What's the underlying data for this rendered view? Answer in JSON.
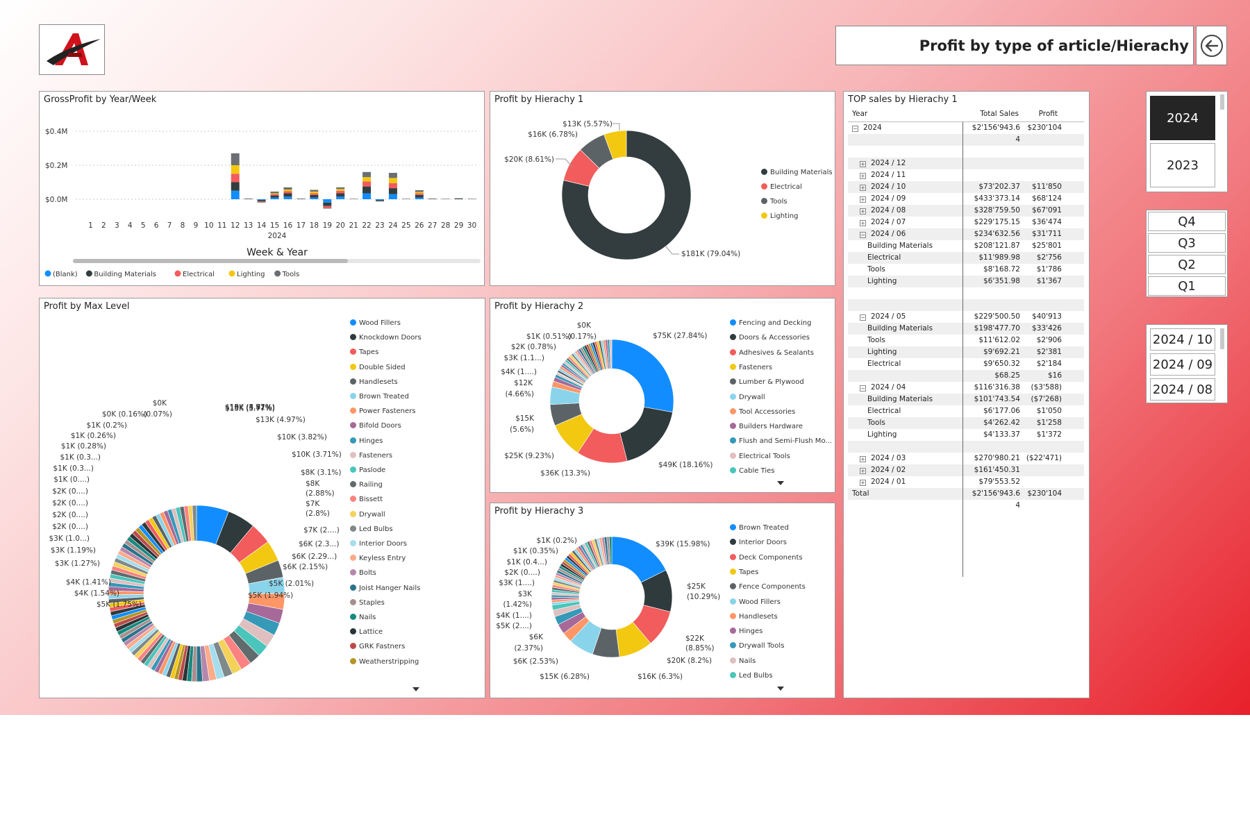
{
  "header": {
    "title": "Profit by type of article/Hierachy"
  },
  "icons": {
    "logo": "brand-logo",
    "back": "back-arrow-icon"
  },
  "gross_profit": {
    "title": "GrossProfit by Year/Week",
    "x_title": "Week & Year",
    "year_label": "2024",
    "y_ticks": [
      "$0.4M",
      "$0.2M",
      "$0.0M"
    ],
    "legend": [
      {
        "label": "(Blank)",
        "color": "#118dff"
      },
      {
        "label": "Building Materials",
        "color": "#333d3f"
      },
      {
        "label": "Electrical",
        "color": "#f25c5c"
      },
      {
        "label": "Lighting",
        "color": "#f2c811"
      },
      {
        "label": "Tools",
        "color": "#6b6f73"
      }
    ]
  },
  "hier1": {
    "title": "Profit by Hierachy 1",
    "legend": [
      {
        "label": "Building Materials",
        "color": "#333d3f"
      },
      {
        "label": "Electrical",
        "color": "#f25c5c"
      },
      {
        "label": "Tools",
        "color": "#5c6367"
      },
      {
        "label": "Lighting",
        "color": "#f2c811"
      }
    ],
    "labels": [
      "$13K (5.57%)",
      "$16K (6.78%)",
      "$20K (8.61%)",
      "$181K (79.04%)"
    ]
  },
  "maxlevel": {
    "title": "Profit by Max Level",
    "legend": [
      {
        "label": "Wood Fillers",
        "color": "#118dff"
      },
      {
        "label": "Knockdown Doors",
        "color": "#2f3a3d"
      },
      {
        "label": "Tapes",
        "color": "#f25c5c"
      },
      {
        "label": "Double Sided",
        "color": "#f2c811"
      },
      {
        "label": "Handlesets",
        "color": "#5c6367"
      },
      {
        "label": "Brown Treated",
        "color": "#8ad4eb"
      },
      {
        "label": "Power Fasteners",
        "color": "#fe9666"
      },
      {
        "label": "Bifold Doors",
        "color": "#a66999"
      },
      {
        "label": "Hinges",
        "color": "#3599b8"
      },
      {
        "label": "Fasteners",
        "color": "#dfbfbf"
      },
      {
        "label": "Paslode",
        "color": "#4ac5bb"
      },
      {
        "label": "Railing",
        "color": "#5f6b6d"
      },
      {
        "label": "Bissett",
        "color": "#fb8281"
      },
      {
        "label": "Drywall",
        "color": "#f4d25a"
      },
      {
        "label": "Led Bulbs",
        "color": "#7f898a"
      },
      {
        "label": "Interior Doors",
        "color": "#a4ddee"
      },
      {
        "label": "Keyless Entry",
        "color": "#fdab89"
      },
      {
        "label": "Bolts",
        "color": "#b687ac"
      },
      {
        "label": "Joist Hanger Nails",
        "color": "#28738a"
      },
      {
        "label": "Staples",
        "color": "#a78f8f"
      },
      {
        "label": "Nails",
        "color": "#168980"
      },
      {
        "label": "Lattice",
        "color": "#293537"
      },
      {
        "label": "GRK Fastners",
        "color": "#bb4a4a"
      },
      {
        "label": "Weatherstripping",
        "color": "#b59525"
      }
    ],
    "labels_right": [
      "$15K (5.77%)",
      "$13K (4.97%)",
      "$10K (3.82%)",
      "$10K (3.71%)",
      "$8K (3.1%)",
      "$8K",
      "(2.88%)",
      "$7K",
      "(2.8%)",
      "$7K (2....)",
      "$6K (2.3...)",
      "$6K (2.29...)",
      "$6K (2.15%)",
      "$5K (2.01%)",
      "$5K (1.94%)"
    ],
    "labels_left": [
      "$0K",
      "$0K (0.16%)",
      "(0.07%)",
      "$1K (0.2%)",
      "$1K (0.26%)",
      "$1K (0.28%)",
      "$1K (0.3...)",
      "$1K (0.3...)",
      "$1K (0....)",
      "$2K (0....)",
      "$2K (0....)",
      "$2K (0....)",
      "$2K (0....)",
      "$3K (1.0...)",
      "$3K (1.19%)",
      "$3K (1.27%)",
      "$4K (1.41%)",
      "$4K (1.54%)",
      "$5K (1.75%)"
    ]
  },
  "hier2": {
    "title": "Profit by Hierachy 2",
    "legend": [
      {
        "label": "Fencing and Decking",
        "color": "#118dff"
      },
      {
        "label": "Doors & Accessories",
        "color": "#2f3a3d"
      },
      {
        "label": "Adhesives & Sealants",
        "color": "#f25c5c"
      },
      {
        "label": "Fasteners",
        "color": "#f2c811"
      },
      {
        "label": "Lumber & Plywood",
        "color": "#5c6367"
      },
      {
        "label": "Drywall",
        "color": "#8ad4eb"
      },
      {
        "label": "Tool Accessories",
        "color": "#fe9666"
      },
      {
        "label": "Builders Hardware",
        "color": "#a66999"
      },
      {
        "label": "Flush and Semi-Flush Mo...",
        "color": "#3599b8"
      },
      {
        "label": "Electrical Tools",
        "color": "#dfbfbf"
      },
      {
        "label": "Cable Ties",
        "color": "#4ac5bb"
      }
    ],
    "labels": [
      "$0K",
      "$1K (0.51%)",
      "(0.17%)",
      "$2K (0.78%)",
      "$3K (1.1...)",
      "$4K (1....)",
      "$12K",
      "(4.66%)",
      "$15K",
      "(5.6%)",
      "$25K (9.23%)",
      "$36K (13.3%)",
      "$49K (18.16%)",
      "$75K (27.84%)"
    ]
  },
  "hier3": {
    "title": "Profit by Hierachy 3",
    "legend": [
      {
        "label": "Brown Treated",
        "color": "#118dff"
      },
      {
        "label": "Interior Doors",
        "color": "#2f3a3d"
      },
      {
        "label": "Deck Components",
        "color": "#f25c5c"
      },
      {
        "label": "Tapes",
        "color": "#f2c811"
      },
      {
        "label": "Fence Components",
        "color": "#5c6367"
      },
      {
        "label": "Wood Fillers",
        "color": "#8ad4eb"
      },
      {
        "label": "Handlesets",
        "color": "#fe9666"
      },
      {
        "label": "Hinges",
        "color": "#a66999"
      },
      {
        "label": "Drywall Tools",
        "color": "#3599b8"
      },
      {
        "label": "Nails",
        "color": "#dfbfbf"
      },
      {
        "label": "Led Bulbs",
        "color": "#4ac5bb"
      }
    ],
    "labels": [
      "$1K (0.2%)",
      "$1K (0.35%)",
      "$1K (0.4...)",
      "$2K (0....)",
      "$3K (1....)",
      "$3K",
      "(1.42%)",
      "$4K (1....)",
      "$5K (2....)",
      "$6K",
      "(2.37%)",
      "$6K (2.53%)",
      "$15K (6.28%)",
      "$16K (6.3%)",
      "$20K (8.2%)",
      "$22K",
      "(8.85%)",
      "$25K",
      "(10.29%)",
      "$39K (15.98%)"
    ]
  },
  "top_sales": {
    "title": "TOP sales by Hierachy 1",
    "columns": [
      "Year",
      "Total Sales",
      "Profit"
    ],
    "rows": [
      {
        "label": "2024",
        "indent": 0,
        "toggle": "−",
        "sales": "$2'156'943.6",
        "profit": "$230'104"
      },
      {
        "label": "",
        "indent": 0,
        "toggle": "",
        "sales": "4",
        "profit": ""
      },
      {
        "label": "",
        "indent": 0,
        "toggle": "",
        "sales": "",
        "profit": ""
      },
      {
        "label": "2024 / 12",
        "indent": 1,
        "toggle": "+",
        "sales": "",
        "profit": ""
      },
      {
        "label": "2024 / 11",
        "indent": 1,
        "toggle": "+",
        "sales": "",
        "profit": ""
      },
      {
        "label": "2024 / 10",
        "indent": 1,
        "toggle": "+",
        "sales": "$73'202.37",
        "profit": "$11'850"
      },
      {
        "label": "2024 / 09",
        "indent": 1,
        "toggle": "+",
        "sales": "$433'373.14",
        "profit": "$68'124"
      },
      {
        "label": "2024 / 08",
        "indent": 1,
        "toggle": "+",
        "sales": "$328'759.50",
        "profit": "$67'091"
      },
      {
        "label": "2024 / 07",
        "indent": 1,
        "toggle": "+",
        "sales": "$229'175.15",
        "profit": "$36'474"
      },
      {
        "label": "2024 / 06",
        "indent": 1,
        "toggle": "−",
        "sales": "$234'632.56",
        "profit": "$31'711"
      },
      {
        "label": "Building Materials",
        "indent": 2,
        "toggle": "",
        "sales": "$208'121.87",
        "profit": "$25'801"
      },
      {
        "label": "Electrical",
        "indent": 2,
        "toggle": "",
        "sales": "$11'989.98",
        "profit": "$2'756"
      },
      {
        "label": "Tools",
        "indent": 2,
        "toggle": "",
        "sales": "$8'168.72",
        "profit": "$1'786"
      },
      {
        "label": "Lighting",
        "indent": 2,
        "toggle": "",
        "sales": "$6'351.98",
        "profit": "$1'367"
      },
      {
        "label": "",
        "indent": 0,
        "toggle": "",
        "sales": "",
        "profit": ""
      },
      {
        "label": "",
        "indent": 0,
        "toggle": "",
        "sales": "",
        "profit": ""
      },
      {
        "label": "2024 / 05",
        "indent": 1,
        "toggle": "−",
        "sales": "$229'500.50",
        "profit": "$40'913"
      },
      {
        "label": "Building Materials",
        "indent": 2,
        "toggle": "",
        "sales": "$198'477.70",
        "profit": "$33'426"
      },
      {
        "label": "Tools",
        "indent": 2,
        "toggle": "",
        "sales": "$11'612.02",
        "profit": "$2'906"
      },
      {
        "label": "Lighting",
        "indent": 2,
        "toggle": "",
        "sales": "$9'692.21",
        "profit": "$2'381"
      },
      {
        "label": "Electrical",
        "indent": 2,
        "toggle": "",
        "sales": "$9'650.32",
        "profit": "$2'184"
      },
      {
        "label": "",
        "indent": 2,
        "toggle": "",
        "sales": "$68.25",
        "profit": "$16"
      },
      {
        "label": "2024 / 04",
        "indent": 1,
        "toggle": "−",
        "sales": "$116'316.38",
        "profit": "($3'588)"
      },
      {
        "label": "Building Materials",
        "indent": 2,
        "toggle": "",
        "sales": "$101'743.54",
        "profit": "($7'268)"
      },
      {
        "label": "Electrical",
        "indent": 2,
        "toggle": "",
        "sales": "$6'177.06",
        "profit": "$1'050"
      },
      {
        "label": "Tools",
        "indent": 2,
        "toggle": "",
        "sales": "$4'262.42",
        "profit": "$1'258"
      },
      {
        "label": "Lighting",
        "indent": 2,
        "toggle": "",
        "sales": "$4'133.37",
        "profit": "$1'372"
      },
      {
        "label": "",
        "indent": 0,
        "toggle": "",
        "sales": "",
        "profit": ""
      },
      {
        "label": "2024 / 03",
        "indent": 1,
        "toggle": "+",
        "sales": "$270'980.21",
        "profit": "($22'471)"
      },
      {
        "label": "2024 / 02",
        "indent": 1,
        "toggle": "+",
        "sales": "$161'450.31",
        "profit": ""
      },
      {
        "label": "2024 / 01",
        "indent": 1,
        "toggle": "+",
        "sales": "$79'553.52",
        "profit": ""
      },
      {
        "label": "Total",
        "indent": 0,
        "toggle": "",
        "sales": "$2'156'943.6",
        "profit": "$230'104"
      },
      {
        "label": "",
        "indent": 0,
        "toggle": "",
        "sales": "4",
        "profit": ""
      }
    ]
  },
  "slicers": {
    "years": [
      {
        "label": "2024",
        "selected": true
      },
      {
        "label": "2023",
        "selected": false
      }
    ],
    "quarters": [
      {
        "label": "Q4"
      },
      {
        "label": "Q3"
      },
      {
        "label": "Q2"
      },
      {
        "label": "Q1"
      }
    ],
    "months": [
      {
        "label": "2024 / 10"
      },
      {
        "label": "2024 / 09"
      },
      {
        "label": "2024 / 08"
      }
    ]
  },
  "chart_data": [
    {
      "type": "bar",
      "title": "GrossProfit by Year/Week",
      "xlabel": "Week & Year",
      "ylabel": "",
      "ylim": [
        -0.05,
        0.4
      ],
      "y_unit": "$M",
      "categories": [
        "1",
        "2",
        "3",
        "4",
        "5",
        "6",
        "7",
        "8",
        "9",
        "10",
        "11",
        "12",
        "13",
        "14",
        "15",
        "16",
        "17",
        "18",
        "19",
        "20",
        "21",
        "22",
        "23",
        "24",
        "25",
        "26",
        "27",
        "28",
        "29",
        "30"
      ],
      "series": [
        {
          "name": "(Blank)",
          "values": [
            0,
            0,
            0,
            0,
            0,
            0,
            0,
            0,
            0,
            0,
            0,
            0.05,
            0,
            -0.005,
            0.01,
            0.015,
            0,
            0.01,
            -0.02,
            0.015,
            0,
            0.035,
            -0.005,
            0.03,
            0,
            0.01,
            0,
            0,
            0,
            0
          ]
        },
        {
          "name": "Building Materials",
          "values": [
            0,
            0,
            0,
            0,
            0,
            0,
            0,
            0,
            0,
            0,
            0,
            0.05,
            0.003,
            -0.008,
            0.012,
            0.02,
            0.003,
            0.015,
            -0.02,
            0.02,
            0.002,
            0.04,
            -0.005,
            0.035,
            0.002,
            0.015,
            0.003,
            0.002,
            0.005,
            0.002
          ]
        },
        {
          "name": "Electrical",
          "values": [
            0,
            0,
            0,
            0,
            0,
            0,
            0,
            0,
            0,
            0,
            0,
            0.05,
            0,
            -0.004,
            0.008,
            0.012,
            0,
            0.01,
            -0.01,
            0.015,
            0,
            0.03,
            0,
            0.03,
            0,
            0.01,
            0,
            0,
            0,
            0
          ]
        },
        {
          "name": "Lighting",
          "values": [
            0,
            0,
            0,
            0,
            0,
            0,
            0,
            0,
            0,
            0,
            0,
            0.05,
            0,
            0,
            0.005,
            0.01,
            0,
            0.01,
            0,
            0.01,
            0,
            0.025,
            0,
            0.03,
            0,
            0.008,
            0,
            0,
            0,
            0
          ]
        },
        {
          "name": "Tools",
          "values": [
            0,
            0,
            0,
            0,
            0,
            0,
            0,
            0,
            0,
            0,
            0,
            0.07,
            0,
            -0.003,
            0.01,
            0.013,
            0,
            0.01,
            -0.005,
            0.01,
            0,
            0.03,
            -0.003,
            0.03,
            0,
            0.01,
            0,
            0,
            0,
            0
          ]
        }
      ],
      "legend_position": "bottom-left"
    },
    {
      "type": "pie",
      "title": "Profit by Hierachy 1",
      "categories": [
        "Building Materials",
        "Electrical",
        "Tools",
        "Lighting"
      ],
      "values": [
        181,
        20,
        16,
        13
      ],
      "percent": [
        79.04,
        8.61,
        6.78,
        5.57
      ]
    },
    {
      "type": "pie",
      "title": "Profit by Max Level",
      "categories": [
        "Wood Fillers",
        "Knockdown Doors",
        "Tapes",
        "Double Sided",
        "Handlesets",
        "Brown Treated",
        "Power Fasteners",
        "Bifold Doors",
        "Hinges",
        "Fasteners",
        "Paslode",
        "Railing",
        "Bissett",
        "Drywall",
        "Led Bulbs",
        "Interior Doors",
        "Keyless Entry",
        "Bolts",
        "Joist Hanger Nails",
        "Staples",
        "Nails",
        "Lattice",
        "GRK Fastners",
        "Weatherstripping"
      ],
      "percent": [
        5.77,
        4.97,
        3.82,
        3.71,
        3.1,
        2.88,
        2.8,
        2.5,
        2.3,
        2.29,
        2.15,
        2.01,
        1.94,
        1.75,
        1.54,
        1.41,
        1.27,
        1.19,
        1.05,
        0.9,
        0.85,
        0.8,
        0.75,
        0.7
      ],
      "other_small_share": 44.5
    },
    {
      "type": "pie",
      "title": "Profit by Hierachy 2",
      "categories": [
        "Fencing and Decking",
        "Doors & Accessories",
        "Adhesives & Sealants",
        "Fasteners",
        "Lumber & Plywood",
        "Drywall",
        "Tool Accessories",
        "Builders Hardware",
        "Flush and Semi-Flush Mo...",
        "Electrical Tools",
        "Cable Ties"
      ],
      "values": [
        75,
        49,
        36,
        25,
        15,
        12,
        4,
        3,
        2,
        1,
        0.5
      ],
      "percent": [
        27.84,
        18.16,
        13.3,
        9.23,
        5.6,
        4.66,
        1.5,
        1.1,
        0.78,
        0.51,
        0.17
      ],
      "other_small_share": 17.15
    },
    {
      "type": "pie",
      "title": "Profit by Hierachy 3",
      "categories": [
        "Brown Treated",
        "Interior Doors",
        "Deck Components",
        "Tapes",
        "Fence Components",
        "Wood Fillers",
        "Handlesets",
        "Hinges",
        "Drywall Tools",
        "Nails",
        "Led Bulbs"
      ],
      "values": [
        39,
        25,
        22,
        20,
        16,
        15,
        6,
        6,
        5,
        4,
        3
      ],
      "percent": [
        15.98,
        10.29,
        8.85,
        8.2,
        6.3,
        6.28,
        2.53,
        2.37,
        2.1,
        1.6,
        1.42
      ],
      "other_small_share": 34.08
    }
  ]
}
